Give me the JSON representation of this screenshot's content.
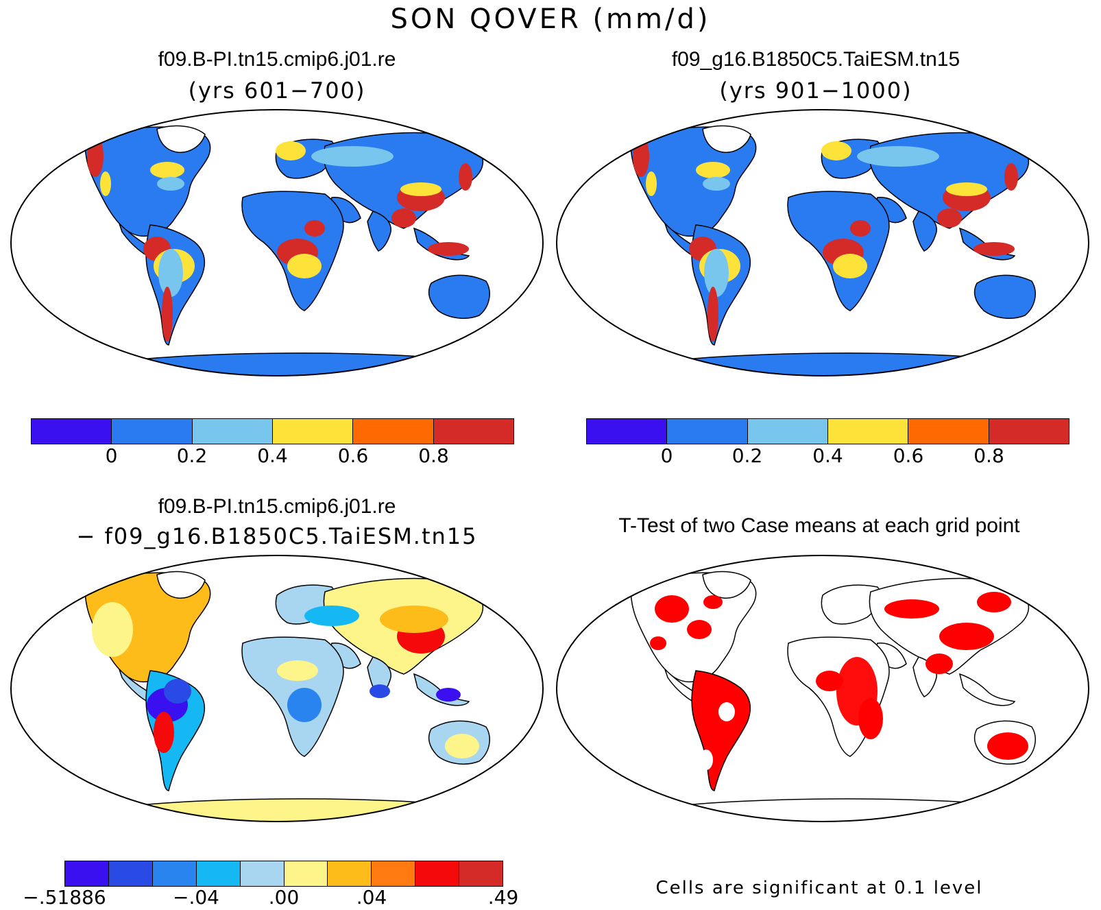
{
  "figure": {
    "title": "SON QOVER (mm/d)"
  },
  "panels": [
    {
      "id": "case1",
      "title": "f09.B-PI.tn15.cmip6.j01.re",
      "subtitle": "(yrs 601−700)",
      "colorbar": {
        "colors": [
          "#3a10f0",
          "#2a7af0",
          "#78c6ee",
          "#fde23a",
          "#ff6a00",
          "#d42a28"
        ],
        "labels": [
          "0",
          "0.2",
          "0.4",
          "0.6",
          "0.8"
        ]
      }
    },
    {
      "id": "case2",
      "title": "f09_g16.B1850C5.TaiESM.tn15",
      "subtitle": "(yrs 901−1000)",
      "colorbar": {
        "colors": [
          "#3a10f0",
          "#2a7af0",
          "#78c6ee",
          "#fde23a",
          "#ff6a00",
          "#d42a28"
        ],
        "labels": [
          "0",
          "0.2",
          "0.4",
          "0.6",
          "0.8"
        ]
      }
    },
    {
      "id": "diff",
      "title": "f09.B-PI.tn15.cmip6.j01.re",
      "subtitle": "− f09_g16.B1850C5.TaiESM.tn15",
      "colorbar": {
        "colors": [
          "#3a10f0",
          "#2a4ae6",
          "#2a84f0",
          "#16b8f4",
          "#a8d6f0",
          "#fdf58a",
          "#fdbc1a",
          "#ff7a10",
          "#f40a0a",
          "#d42a28"
        ],
        "labels": [
          "−.51886",
          "−.04",
          ".00",
          ".04",
          ".49"
        ]
      }
    },
    {
      "id": "ttest",
      "title": "T-Test of two Case means at each grid point",
      "note": "Cells are significant at 0.1 level",
      "significance_color": "#ff0000"
    }
  ]
}
